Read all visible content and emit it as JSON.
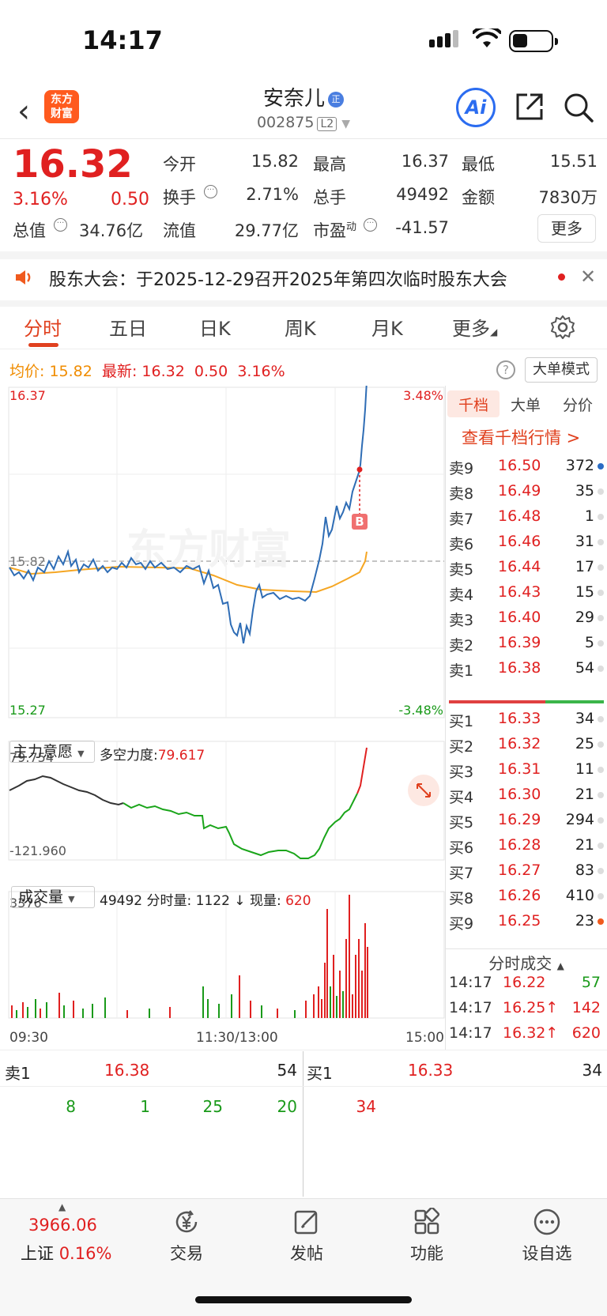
{
  "status_bar": {
    "time": "14:17"
  },
  "header": {
    "logo_line1": "东方",
    "logo_line2": "财富",
    "stock_name": "安奈儿",
    "name_badge": "正",
    "stock_code": "002875",
    "level": "L2",
    "ai_label": "Ai"
  },
  "quote": {
    "price": "16.32",
    "change_pct": "3.16%",
    "change": "0.50",
    "open_label": "今开",
    "open": "15.82",
    "high_label": "最高",
    "high": "16.37",
    "low_label": "最低",
    "low": "15.51",
    "turnover_label": "换手",
    "turnover": "2.71%",
    "volume_label": "总手",
    "volume": "49492",
    "amount_label": "金额",
    "amount": "7830万",
    "mktcap_label": "总值",
    "mktcap": "34.76亿",
    "float_label": "流值",
    "float_cap": "29.77亿",
    "pe_label": "市盈",
    "pe_sup": "动",
    "pe": "-41.57",
    "more_label": "更多"
  },
  "notice": {
    "text": "股东大会：于2025-12-29召开2025年第四次临时股东大会"
  },
  "tabs": [
    "分时",
    "五日",
    "日K",
    "周K",
    "月K",
    "更多"
  ],
  "chart_header": {
    "avg_label": "均价:",
    "avg": "15.82",
    "last_label": "最新:",
    "last": "16.32",
    "last_chg": "0.50",
    "last_pct": "3.16%",
    "mode_button": "大单模式"
  },
  "chart_labels": {
    "top_price": "16.37",
    "top_pct": "3.48%",
    "mid_price": "15.82",
    "bottom_price": "15.27",
    "bottom_pct": "-3.48%",
    "time_start": "09:30",
    "time_mid": "11:30/13:00",
    "time_end": "15:00",
    "trade_marker": "B",
    "watermark": "东方财富"
  },
  "indicator": {
    "selector": "主力意愿",
    "label": "多空力度:",
    "value": "79.617",
    "top": "79.754",
    "bottom": "-121.960"
  },
  "volume_panel": {
    "selector": "成交量",
    "total": "49492",
    "minute_label": "分时量:",
    "minute": "1122",
    "current_label": "现量:",
    "current": "620",
    "max": "3376"
  },
  "side_tabs": [
    "千档",
    "大单",
    "分价"
  ],
  "view_depth": "查看千档行情 >",
  "asks": [
    {
      "label": "卖9",
      "price": "16.50",
      "vol": "372",
      "dot": "#2b6cc4"
    },
    {
      "label": "卖8",
      "price": "16.49",
      "vol": "35",
      "dot": "#dddddd"
    },
    {
      "label": "卖7",
      "price": "16.48",
      "vol": "1",
      "dot": "#dddddd"
    },
    {
      "label": "卖6",
      "price": "16.46",
      "vol": "31",
      "dot": "#dddddd"
    },
    {
      "label": "卖5",
      "price": "16.44",
      "vol": "17",
      "dot": "#dddddd"
    },
    {
      "label": "卖4",
      "price": "16.43",
      "vol": "15",
      "dot": "#dddddd"
    },
    {
      "label": "卖3",
      "price": "16.40",
      "vol": "29",
      "dot": "#dddddd"
    },
    {
      "label": "卖2",
      "price": "16.39",
      "vol": "5",
      "dot": "#dddddd"
    },
    {
      "label": "卖1",
      "price": "16.38",
      "vol": "54",
      "dot": "#dddddd"
    }
  ],
  "bids": [
    {
      "label": "买1",
      "price": "16.33",
      "vol": "34",
      "dot": "#dddddd"
    },
    {
      "label": "买2",
      "price": "16.32",
      "vol": "25",
      "dot": "#dddddd"
    },
    {
      "label": "买3",
      "price": "16.31",
      "vol": "11",
      "dot": "#dddddd"
    },
    {
      "label": "买4",
      "price": "16.30",
      "vol": "21",
      "dot": "#dddddd"
    },
    {
      "label": "买5",
      "price": "16.29",
      "vol": "294",
      "dot": "#dddddd"
    },
    {
      "label": "买6",
      "price": "16.28",
      "vol": "21",
      "dot": "#dddddd"
    },
    {
      "label": "买7",
      "price": "16.27",
      "vol": "83",
      "dot": "#dddddd"
    },
    {
      "label": "买8",
      "price": "16.26",
      "vol": "410",
      "dot": "#dddddd"
    },
    {
      "label": "买9",
      "price": "16.25",
      "vol": "23",
      "dot": "#f05a1e"
    }
  ],
  "trades_header": "分时成交",
  "trades": [
    {
      "time": "14:17",
      "price": "16.22",
      "vol": "57",
      "vol_color": "#1a9a1a"
    },
    {
      "time": "14:17",
      "price": "16.25↑",
      "vol": "142",
      "vol_color": "#e02020"
    },
    {
      "time": "14:17",
      "price": "16.32↑",
      "vol": "620",
      "vol_color": "#e02020"
    }
  ],
  "bottom_quote": {
    "ask1_label": "卖1",
    "ask1_price": "16.38",
    "ask1_vol": "54",
    "bid1_label": "买1",
    "bid1_price": "16.33",
    "bid1_vol": "34",
    "ask_queue": [
      "8",
      "1",
      "25",
      "20"
    ],
    "bid_queue": [
      "34"
    ]
  },
  "bottom_nav": {
    "index_value": "3966.06",
    "index_name": "上证",
    "index_pct": "0.16%",
    "items": [
      "交易",
      "发帖",
      "功能",
      "设自选"
    ]
  }
}
